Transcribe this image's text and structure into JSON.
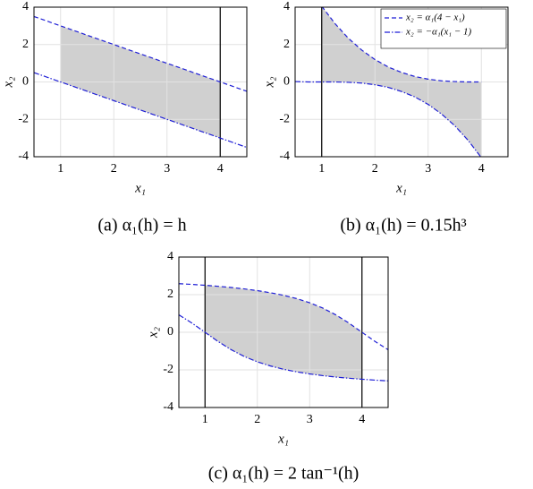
{
  "chart_data": [
    {
      "type": "line",
      "caption": "(a) α₁(h) = h",
      "xlabel": "x₁",
      "ylabel": "x₂",
      "x": [
        0.5,
        0.75,
        1,
        1.25,
        1.5,
        1.75,
        2,
        2.25,
        2.5,
        2.75,
        3,
        3.25,
        3.5,
        3.75,
        4,
        4.25,
        4.5
      ],
      "series": [
        {
          "color": "#1f1fd6",
          "style": "dashed",
          "values": [
            3.5,
            3.25,
            3,
            2.75,
            2.5,
            2.25,
            2,
            1.75,
            1.5,
            1.25,
            1,
            0.75,
            0.5,
            0.25,
            0,
            -0.25,
            -0.5
          ]
        },
        {
          "color": "#1f1fd6",
          "style": "dashdot",
          "values": [
            0.5,
            0.25,
            0,
            -0.25,
            -0.5,
            -0.75,
            -1,
            -1.25,
            -1.5,
            -1.75,
            -2,
            -2.25,
            -2.5,
            -2.75,
            -3,
            -3.25,
            -3.5
          ]
        }
      ],
      "xlim": [
        0.5,
        4.5
      ],
      "ylim": [
        -4,
        4
      ],
      "xticks": [
        1,
        2,
        3,
        4
      ],
      "yticks": [
        -4,
        -2,
        0,
        2,
        4
      ],
      "vlines": [
        4
      ],
      "shade": [
        1,
        4
      ],
      "shade_color": "#d0d0d0",
      "grid": true
    },
    {
      "type": "line",
      "caption": "(b) α₁(h) = 0.15h³",
      "xlabel": "x₁",
      "ylabel": "x₂",
      "x": [
        0.5,
        0.75,
        1,
        1.25,
        1.5,
        1.75,
        2,
        2.25,
        2.5,
        2.75,
        3,
        3.25,
        3.5,
        3.75,
        4,
        4.25,
        4.5
      ],
      "series": [
        {
          "name": "x₂ = α₁(4 − x₁)",
          "color": "#1f1fd6",
          "style": "dashed",
          "values": [
            null,
            null,
            4.05,
            3.12,
            2.34,
            1.71,
            1.2,
            0.8,
            0.51,
            0.29,
            0.15,
            0.06,
            0.02,
            0,
            0,
            null,
            null
          ]
        },
        {
          "name": "x₂ = −α₁(x₁ − 1)",
          "color": "#1f1fd6",
          "style": "dashdot",
          "values": [
            0.02,
            0,
            0,
            0,
            -0.02,
            -0.06,
            -0.15,
            -0.29,
            -0.51,
            -0.8,
            -1.2,
            -1.71,
            -2.34,
            -3.12,
            -4.05,
            null,
            null
          ]
        }
      ],
      "xlim": [
        0.5,
        4.5
      ],
      "ylim": [
        -4,
        4
      ],
      "xticks": [
        1,
        2,
        3,
        4
      ],
      "yticks": [
        -4,
        -2,
        0,
        2,
        4
      ],
      "vlines": [
        1
      ],
      "shade": [
        1,
        4
      ],
      "shade_color": "#d0d0d0",
      "grid": true,
      "legend": "upper right"
    },
    {
      "type": "line",
      "caption": "(c) α₁(h) = 2 tan⁻¹(h)",
      "xlabel": "x₁",
      "ylabel": "x₂",
      "x": [
        0.5,
        0.75,
        1,
        1.25,
        1.5,
        1.75,
        2,
        2.25,
        2.5,
        2.75,
        3,
        3.25,
        3.5,
        3.75,
        4,
        4.25,
        4.5
      ],
      "series": [
        {
          "color": "#1f1fd6",
          "style": "dashed",
          "values": [
            2.585,
            2.545,
            2.498,
            2.444,
            2.381,
            2.306,
            2.214,
            2.103,
            1.966,
            1.792,
            1.571,
            1.287,
            0.927,
            0.49,
            0,
            -0.49,
            -0.927
          ]
        },
        {
          "color": "#1f1fd6",
          "style": "dashdot",
          "values": [
            0.927,
            0.49,
            0,
            -0.49,
            -0.927,
            -1.287,
            -1.571,
            -1.792,
            -1.966,
            -2.103,
            -2.214,
            -2.306,
            -2.381,
            -2.444,
            -2.498,
            -2.545,
            -2.585
          ]
        }
      ],
      "xlim": [
        0.5,
        4.5
      ],
      "ylim": [
        -4,
        4
      ],
      "xticks": [
        1,
        2,
        3,
        4
      ],
      "yticks": [
        -4,
        -2,
        0,
        2,
        4
      ],
      "vlines": [
        1,
        4
      ],
      "shade": [
        1,
        4
      ],
      "shade_color": "#d0d0d0",
      "grid": true
    }
  ]
}
